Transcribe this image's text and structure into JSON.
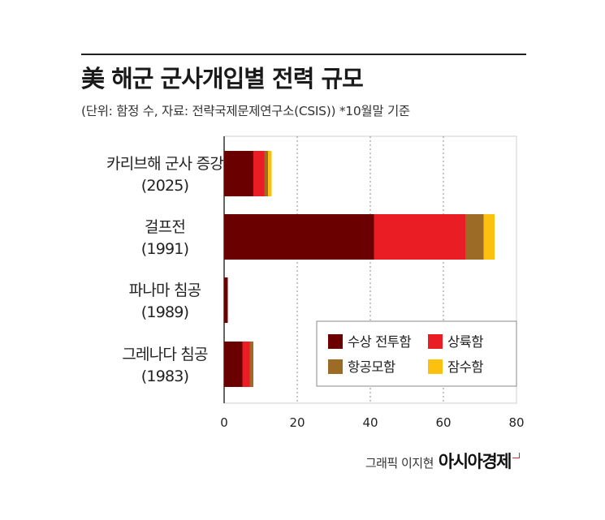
{
  "header": {
    "title": "美 해군 군사개입별 전력 규모",
    "subtitle": "(단위: 함정 수, 자료: 전략국제문제연구소(CSIS))  *10월말 기준"
  },
  "chart_data": {
    "type": "bar",
    "orientation": "horizontal",
    "stacked": true,
    "categories": [
      [
        "카리브해 군사 증강",
        "(2025)"
      ],
      [
        "걸프전",
        "(1991)"
      ],
      [
        "파나마 침공",
        "(1989)"
      ],
      [
        "그레나다 침공",
        "(1983)"
      ]
    ],
    "series": [
      {
        "name": "수상 전투함",
        "color": "#6b0000",
        "values": [
          8,
          41,
          1,
          5
        ]
      },
      {
        "name": "상륙함",
        "color": "#ea1c24",
        "values": [
          3,
          25,
          0,
          2
        ]
      },
      {
        "name": "항공모함",
        "color": "#9c6b26",
        "values": [
          1,
          5,
          0,
          1
        ]
      },
      {
        "name": "잠수함",
        "color": "#fcc10f",
        "values": [
          1,
          3,
          0,
          0
        ]
      }
    ],
    "xlim": [
      0,
      80
    ],
    "xticks": [
      0,
      20,
      40,
      60,
      80
    ],
    "grid": "vertical dotted",
    "legend_position": "bottom-right"
  },
  "footer": {
    "credit": "그래픽 이지현",
    "brand": "아시아경제"
  }
}
